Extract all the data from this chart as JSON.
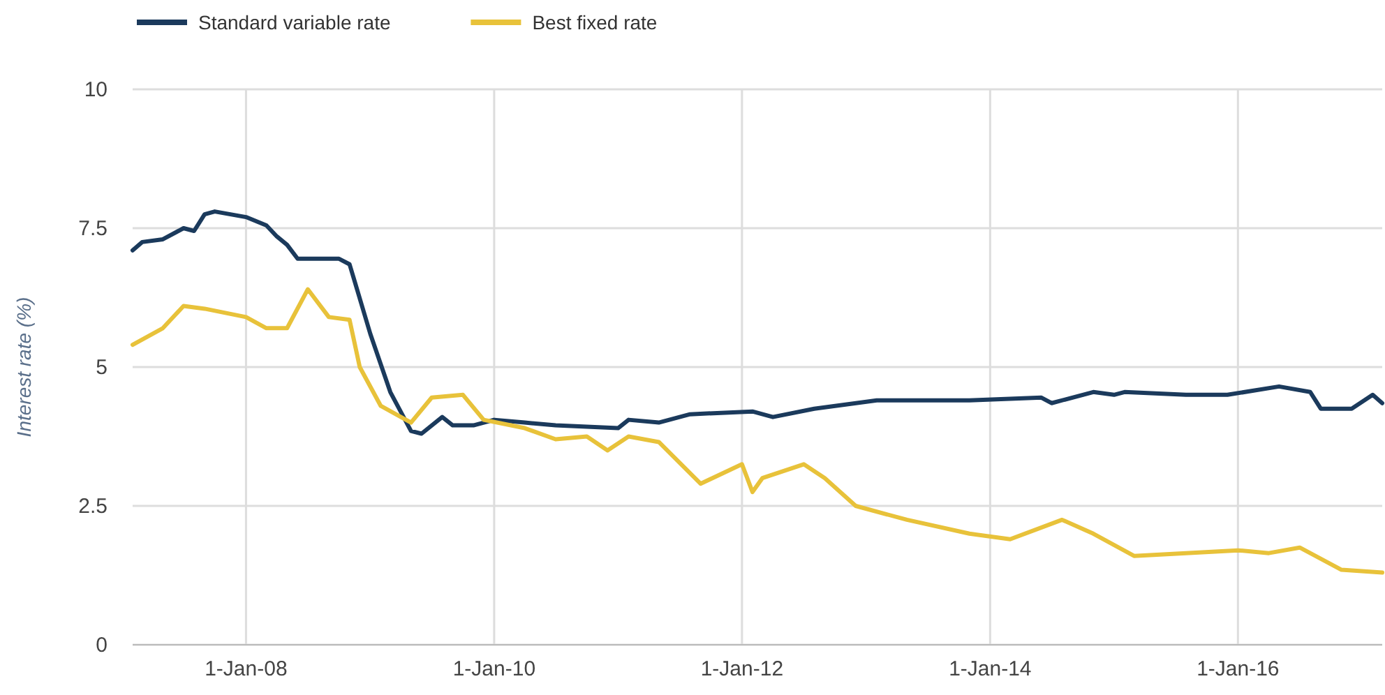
{
  "chart_data": {
    "type": "line",
    "ylabel": "Interest rate (%)",
    "xlim": [
      "2007-02",
      "2017-03"
    ],
    "xticks": [
      {
        "value": "2008-01-01",
        "label": "1-Jan-08"
      },
      {
        "value": "2010-01-01",
        "label": "1-Jan-10"
      },
      {
        "value": "2012-01-01",
        "label": "1-Jan-12"
      },
      {
        "value": "2014-01-01",
        "label": "1-Jan-14"
      },
      {
        "value": "2016-01-01",
        "label": "1-Jan-16"
      }
    ],
    "ylim": [
      0,
      10
    ],
    "yticks": [
      0,
      2.5,
      5,
      7.5,
      10
    ],
    "grid": true,
    "legend": "top left",
    "marker": "none",
    "line_style": "solid",
    "series": [
      {
        "name": "Standard variable rate",
        "color": "#1b3a5c",
        "x": [
          "2007-02",
          "2007-03",
          "2007-05",
          "2007-07",
          "2007-08",
          "2007-09",
          "2007-10",
          "2008-01",
          "2008-03",
          "2008-04",
          "2008-05",
          "2008-06",
          "2008-10",
          "2008-11",
          "2009-01",
          "2009-03",
          "2009-05",
          "2009-06",
          "2009-08",
          "2009-09",
          "2009-11",
          "2010-01",
          "2010-04",
          "2010-07",
          "2011-01",
          "2011-02",
          "2011-05",
          "2011-08",
          "2012-02",
          "2012-04",
          "2012-08",
          "2013-02",
          "2013-11",
          "2014-06",
          "2014-07",
          "2014-11",
          "2015-01",
          "2015-02",
          "2015-08",
          "2015-12",
          "2016-05",
          "2016-08",
          "2016-09",
          "2016-12",
          "2017-02",
          "2017-03"
        ],
        "values": [
          7.1,
          7.25,
          7.3,
          7.5,
          7.45,
          7.75,
          7.8,
          7.7,
          7.55,
          7.35,
          7.2,
          6.95,
          6.95,
          6.85,
          5.6,
          4.55,
          3.85,
          3.8,
          4.1,
          3.95,
          3.95,
          4.05,
          4.0,
          3.95,
          3.9,
          4.05,
          4.0,
          4.15,
          4.2,
          4.1,
          4.25,
          4.4,
          4.4,
          4.45,
          4.35,
          4.55,
          4.5,
          4.55,
          4.5,
          4.5,
          4.65,
          4.55,
          4.25,
          4.25,
          4.5,
          4.35
        ]
      },
      {
        "name": "Best fixed rate",
        "color": "#e8c23a",
        "x": [
          "2007-02",
          "2007-05",
          "2007-07",
          "2007-09",
          "2008-01",
          "2008-03",
          "2008-05",
          "2008-07",
          "2008-09",
          "2008-11",
          "2008-12",
          "2009-02",
          "2009-05",
          "2009-07",
          "2009-10",
          "2009-12",
          "2010-04",
          "2010-07",
          "2010-10",
          "2010-12",
          "2011-02",
          "2011-05",
          "2011-09",
          "2012-01",
          "2012-02",
          "2012-03",
          "2012-07",
          "2012-09",
          "2012-12",
          "2013-05",
          "2013-11",
          "2014-03",
          "2014-08",
          "2014-11",
          "2015-03",
          "2016-01",
          "2016-04",
          "2016-07",
          "2016-11",
          "2017-03"
        ],
        "values": [
          5.4,
          5.7,
          6.1,
          6.05,
          5.9,
          5.7,
          5.7,
          6.4,
          5.9,
          5.85,
          5.0,
          4.3,
          4.0,
          4.45,
          4.5,
          4.05,
          3.9,
          3.7,
          3.75,
          3.5,
          3.75,
          3.65,
          2.9,
          3.25,
          2.75,
          3.0,
          3.25,
          3.0,
          2.5,
          2.25,
          2.0,
          1.9,
          2.25,
          2.0,
          1.6,
          1.7,
          1.65,
          1.75,
          1.35,
          1.3
        ]
      }
    ]
  }
}
